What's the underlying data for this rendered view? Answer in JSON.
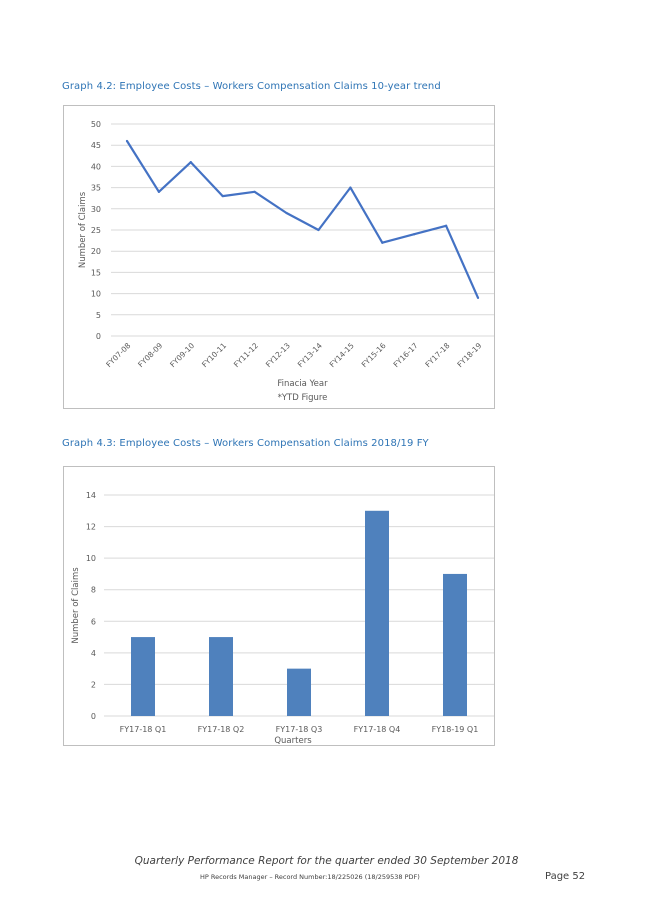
{
  "captions": {
    "graph_4_2": "Graph 4.2: Employee Costs – Workers Compensation Claims 10-year trend",
    "graph_4_3": "Graph 4.3: Employee Costs – Workers Compensation Claims 2018/19 FY"
  },
  "chart_data": [
    {
      "type": "line",
      "categories": [
        "FY07-08",
        "FY08-09",
        "FY09-10",
        "FY10-11",
        "FY11-12",
        "FY12-13",
        "FY13-14",
        "FY14-15",
        "FY15-16",
        "FY16-17",
        "FY17-18",
        "FY18-19"
      ],
      "series": [
        {
          "values": [
            46,
            34,
            41,
            33,
            34,
            29,
            25,
            35,
            22,
            24,
            26,
            9
          ]
        }
      ],
      "xlabel": "Finacia Year",
      "xlabel_note": "*YTD Figure",
      "ylabel": "Number of Claims",
      "ylim": [
        0,
        50
      ],
      "yticks": [
        0,
        5,
        10,
        15,
        20,
        25,
        30,
        35,
        40,
        45,
        50
      ],
      "grid": true,
      "color": "#4472C4"
    },
    {
      "type": "bar",
      "categories": [
        "FY17-18 Q1",
        "FY17-18 Q2",
        "FY17-18 Q3",
        "FY17-18 Q4",
        "FY18-19 Q1"
      ],
      "series": [
        {
          "values": [
            5,
            5,
            3,
            13,
            9
          ]
        }
      ],
      "xlabel": "Quarters",
      "ylabel": "Number of Claims",
      "ylim": [
        0,
        14
      ],
      "yticks": [
        0,
        2,
        4,
        6,
        8,
        10,
        12,
        14
      ],
      "grid": true,
      "color": "#4F81BD"
    }
  ],
  "footer": {
    "title": "Quarterly Performance Report for the quarter ended 30 September 2018",
    "record": "HP Records Manager – Record Number:18/225026 (18/259538 PDF)",
    "page": "Page 52"
  }
}
